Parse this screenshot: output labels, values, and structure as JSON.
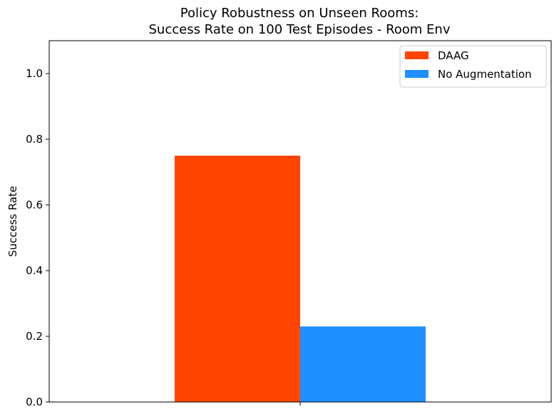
{
  "chart_data": {
    "type": "bar",
    "title_lines": [
      "Policy Robustness on Unseen Rooms:",
      "Success Rate on 100 Test Episodes - Room Env"
    ],
    "xlabel": "",
    "ylabel": "Success Rate",
    "categories": [
      ""
    ],
    "series": [
      {
        "name": "DAAG",
        "values": [
          0.75
        ],
        "color": "#ff4500"
      },
      {
        "name": "No Augmentation",
        "values": [
          0.23
        ],
        "color": "#1e90ff"
      }
    ],
    "ylim": [
      0,
      1.1
    ],
    "yticks": [
      "0.0",
      "0.2",
      "0.4",
      "0.6",
      "0.8",
      "1.0"
    ],
    "grid": false,
    "legend_position": "top-right"
  }
}
